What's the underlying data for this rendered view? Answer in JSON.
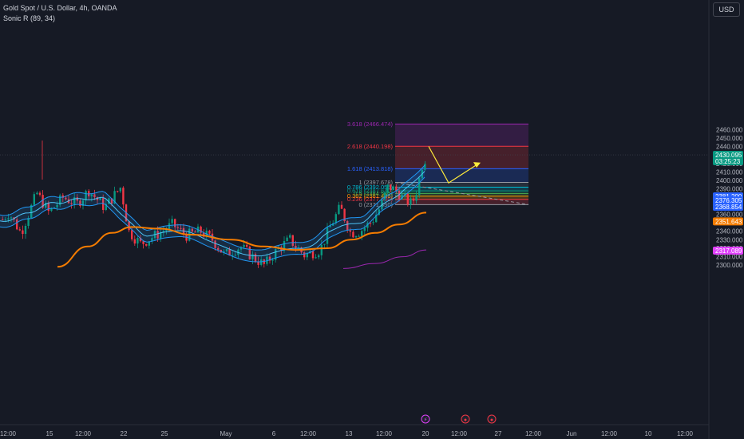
{
  "legend": {
    "symbol": "Gold Spot / U.S. Dollar, 4h, OANDA",
    "indicator": "Sonic R (89, 34)"
  },
  "currency_button": "USD",
  "chart_data": {
    "type": "candlestick",
    "title": "Gold Spot / U.S. Dollar, 4h, OANDA",
    "ylim": [
      2293,
      2480
    ],
    "y_ticks": [
      2300,
      2310,
      2320,
      2330,
      2340,
      2350,
      2360,
      2370,
      2380,
      2390,
      2400,
      2410,
      2420,
      2430,
      2440,
      2450,
      2460
    ],
    "x_ticks": [
      "12:00",
      "15",
      "12:00",
      "22",
      "25",
      "May",
      "6",
      "12:00",
      "13",
      "12:00",
      "20",
      "12:00",
      "27",
      "12:00",
      "Jun",
      "12:00",
      "10",
      "12:00"
    ],
    "grid": false,
    "fib_levels": [
      {
        "label": "0 (2371.450)",
        "value": 2371.45,
        "color": "#9598a1"
      },
      {
        "label": "0.236 (2377.680)",
        "value": 2377.68,
        "color": "#f23645"
      },
      {
        "label": "0.382 (2381.438)",
        "value": 2381.438,
        "color": "#ff9800"
      },
      {
        "label": "0.5 (2384.535)",
        "value": 2384.535,
        "color": "#4caf50"
      },
      {
        "label": "0.618 (2387.640)",
        "value": 2387.64,
        "color": "#089981"
      },
      {
        "label": "0.786 (2392.055)",
        "value": 2392.055,
        "color": "#00bcd4"
      },
      {
        "label": "1 (2397.678)",
        "value": 2397.678,
        "color": "#9598a1"
      },
      {
        "label": "1.618 (2413.818)",
        "value": 2413.818,
        "color": "#2962ff"
      },
      {
        "label": "2.618 (2440.198)",
        "value": 2440.198,
        "color": "#f23645"
      },
      {
        "label": "3.618 (2466.474)",
        "value": 2466.474,
        "color": "#9c27b0"
      }
    ],
    "price_badges": [
      {
        "value": "2430.095",
        "sub": "03:25:23",
        "y": 2430.095,
        "color": "#089981"
      },
      {
        "value": "2381.200",
        "y": 2381.2,
        "color": "#2962ff"
      },
      {
        "value": "2376.305",
        "y": 2376.305,
        "color": "#2962ff"
      },
      {
        "value": "2368.854",
        "y": 2368.854,
        "color": "#2962ff"
      },
      {
        "value": "2351.643",
        "y": 2351.643,
        "color": "#f57c00"
      },
      {
        "value": "2317.089",
        "y": 2317.089,
        "color": "#e040fb"
      }
    ],
    "current_price": 2430.095,
    "colors": {
      "up": "#089981",
      "down": "#f23645",
      "ema_band": "#2196f3",
      "ema_slow": "#f57c00",
      "ema_long": "#9c27b0",
      "projection": "#ffeb3b"
    }
  }
}
